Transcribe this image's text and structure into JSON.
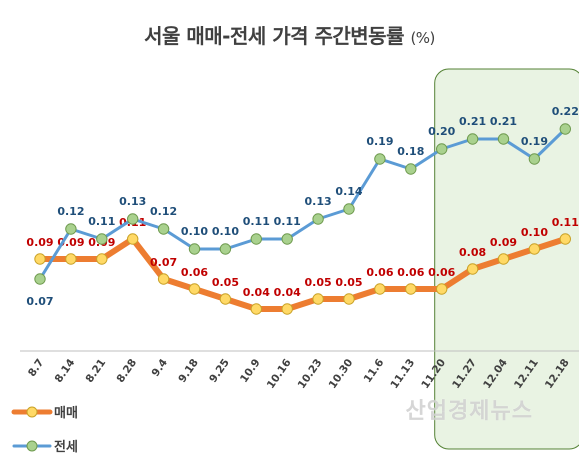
{
  "title": "서울 매매-전세 가격 주간변동률",
  "title_unit": "(%)",
  "watermark": "산업경제뉴스",
  "colors": {
    "sale": "#ED7D31",
    "sale_marker": "#FFD966",
    "sale_label": "#C00000",
    "jeonse": "#5B9BD5",
    "jeonse_marker": "#A9D18E",
    "jeonse_label": "#1F4E79",
    "highlight_fill": "#E2EFDA",
    "highlight_stroke": "#548235"
  },
  "chart_data": {
    "type": "line",
    "title": "서울 매매-전세 가격 주간변동률",
    "categories": [
      "8.7",
      "8.14",
      "8.21",
      "8.28",
      "9.4",
      "9.18",
      "9.25",
      "10.9",
      "10.16",
      "10.23",
      "10.30",
      "11.6",
      "11.13",
      "11.20",
      "11.27",
      "12.04",
      "12.11",
      "12.18"
    ],
    "series": [
      {
        "name": "매매",
        "values": [
          0.09,
          0.09,
          0.09,
          0.11,
          0.07,
          0.06,
          0.05,
          0.04,
          0.04,
          0.05,
          0.05,
          0.06,
          0.06,
          0.06,
          0.08,
          0.09,
          0.1,
          0.11
        ]
      },
      {
        "name": "전세",
        "values": [
          0.07,
          0.12,
          0.11,
          0.13,
          0.12,
          0.1,
          0.1,
          0.11,
          0.11,
          0.13,
          0.14,
          0.19,
          0.18,
          0.2,
          0.21,
          0.21,
          0.19,
          0.22
        ]
      }
    ],
    "highlight_categories": [
      "11.20",
      "12.18"
    ],
    "ylim": [
      -0.02,
      0.25
    ],
    "grid": false,
    "legend": "bottom-left"
  },
  "legend": [
    {
      "label": "매매"
    },
    {
      "label": "전세"
    }
  ]
}
